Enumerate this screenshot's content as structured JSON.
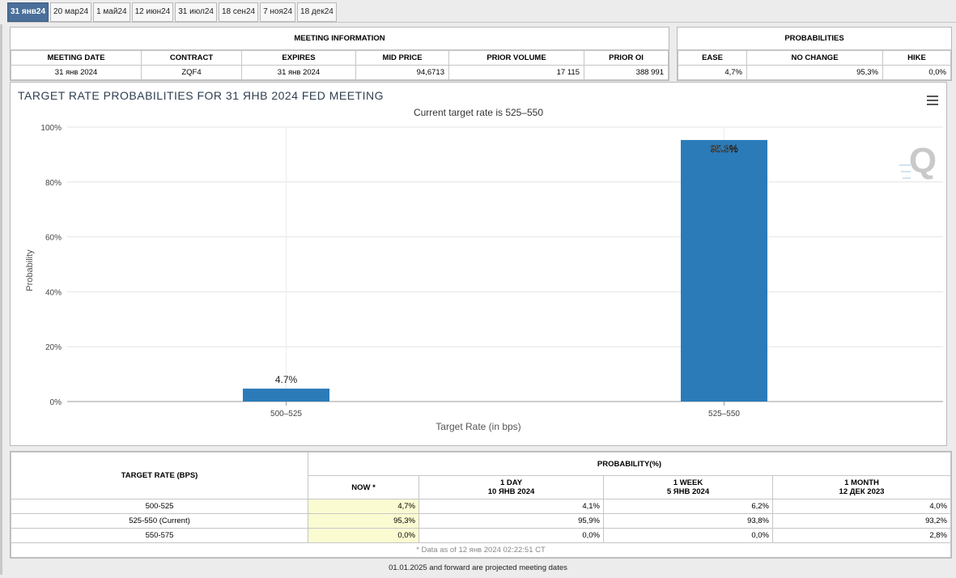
{
  "tabs": [
    "31 янв24",
    "20 мар24",
    "1 май24",
    "12 июн24",
    "31 июл24",
    "18 сен24",
    "7 ноя24",
    "18 дек24"
  ],
  "meeting_info": {
    "caption": "MEETING INFORMATION",
    "headers": [
      "MEETING DATE",
      "CONTRACT",
      "EXPIRES",
      "MID PRICE",
      "PRIOR VOLUME",
      "PRIOR OI"
    ],
    "values": [
      "31 янв 2024",
      "ZQF4",
      "31 янв 2024",
      "94,6713",
      "17 115",
      "388 991"
    ]
  },
  "probabilities": {
    "caption": "PROBABILITIES",
    "headers": [
      "EASE",
      "NO CHANGE",
      "HIKE"
    ],
    "values": [
      "4,7%",
      "95,3%",
      "0,0%"
    ]
  },
  "chart": {
    "title": "TARGET RATE PROBABILITIES FOR 31 ЯНВ 2024 FED MEETING",
    "subtitle": "Current target rate is 525–550",
    "watermark": "Q"
  },
  "chart_data": {
    "type": "bar",
    "title": "TARGET RATE PROBABILITIES FOR 31 ЯНВ 2024 FED MEETING",
    "subtitle": "Current target rate is 525–550",
    "categories": [
      "500–525",
      "525–550"
    ],
    "values": [
      4.7,
      95.3
    ],
    "data_labels": [
      "4.7%",
      "95.3%"
    ],
    "xlabel": "Target Rate (in bps)",
    "ylabel": "Probability",
    "ylim": [
      0,
      100
    ],
    "yticks": [
      "0%",
      "20%",
      "40%",
      "60%",
      "80%",
      "100%"
    ],
    "bar_color": "#2b7bb9",
    "grid": true,
    "legend": "none"
  },
  "bottom_table": {
    "target_header": "TARGET RATE (BPS)",
    "prob_header": "PROBABILITY(%)",
    "columns": [
      {
        "title": "NOW *",
        "sub": ""
      },
      {
        "title": "1 DAY",
        "sub": "10 ЯНВ 2024"
      },
      {
        "title": "1 WEEK",
        "sub": "5 ЯНВ 2024"
      },
      {
        "title": "1 MONTH",
        "sub": "12 ДЕК 2023"
      }
    ],
    "rows": [
      {
        "rate": "500-525",
        "vals": [
          "4,7%",
          "4,1%",
          "6,2%",
          "4,0%"
        ]
      },
      {
        "rate": "525-550 (Current)",
        "vals": [
          "95,3%",
          "95,9%",
          "93,8%",
          "93,2%"
        ]
      },
      {
        "rate": "550-575",
        "vals": [
          "0,0%",
          "0,0%",
          "0,0%",
          "2,8%"
        ]
      }
    ],
    "note": "* Data as of 12 янв 2024 02:22:51 CT"
  },
  "footer": "01.01.2025 and forward are projected meeting dates"
}
